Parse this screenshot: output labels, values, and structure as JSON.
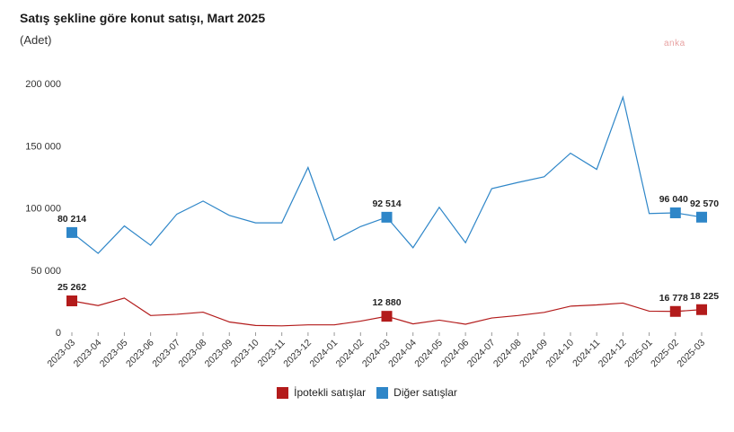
{
  "title": "Satış şekline göre konut satışı, Mart 2025",
  "subtitle": "(Adet)",
  "watermark": "anka",
  "legend": {
    "mortgage": "İpotekli satışlar",
    "other": "Diğer satışlar"
  },
  "colors": {
    "mortgage": "#b31b1b",
    "other": "#2e86c8"
  },
  "chart_data": {
    "type": "line",
    "x": [
      "2023-03",
      "2023-04",
      "2023-05",
      "2023-06",
      "2023-07",
      "2023-08",
      "2023-09",
      "2023-10",
      "2023-11",
      "2023-12",
      "2024-01",
      "2024-02",
      "2024-03",
      "2024-04",
      "2024-05",
      "2024-06",
      "2024-07",
      "2024-08",
      "2024-09",
      "2024-10",
      "2024-11",
      "2024-12",
      "2025-01",
      "2025-02",
      "2025-03"
    ],
    "ylim": [
      0,
      200000
    ],
    "yticks": [
      "0",
      "50 000",
      "100 000",
      "150 000",
      "200 000"
    ],
    "ytick_values": [
      0,
      50000,
      100000,
      150000,
      200000
    ],
    "grid": false,
    "legend_position": "bottom",
    "series": [
      {
        "name": "İpotekli satışlar",
        "color": "#b31b1b",
        "values": [
          25262,
          21500,
          27500,
          13500,
          14500,
          16200,
          8300,
          5500,
          5200,
          6000,
          6000,
          9000,
          12880,
          6800,
          9800,
          6500,
          11500,
          13500,
          16000,
          21000,
          22000,
          23500,
          17000,
          16778,
          18225
        ],
        "labels": [
          {
            "i": 0,
            "text": "25 262"
          },
          {
            "i": 12,
            "text": "12 880"
          },
          {
            "i": 23,
            "text": "16 778"
          },
          {
            "i": 24,
            "text": "18 225"
          }
        ]
      },
      {
        "name": "Diğer satışlar",
        "color": "#2e86c8",
        "values": [
          80214,
          63500,
          85500,
          70000,
          95000,
          105500,
          94000,
          88000,
          88000,
          132500,
          74000,
          85000,
          92514,
          68000,
          100500,
          72000,
          115500,
          120500,
          125000,
          144000,
          131000,
          189000,
          95500,
          96040,
          92570
        ],
        "labels": [
          {
            "i": 0,
            "text": "80 214"
          },
          {
            "i": 12,
            "text": "92 514"
          },
          {
            "i": 23,
            "text": "96 040"
          },
          {
            "i": 24,
            "text": "92 570"
          }
        ]
      }
    ]
  }
}
